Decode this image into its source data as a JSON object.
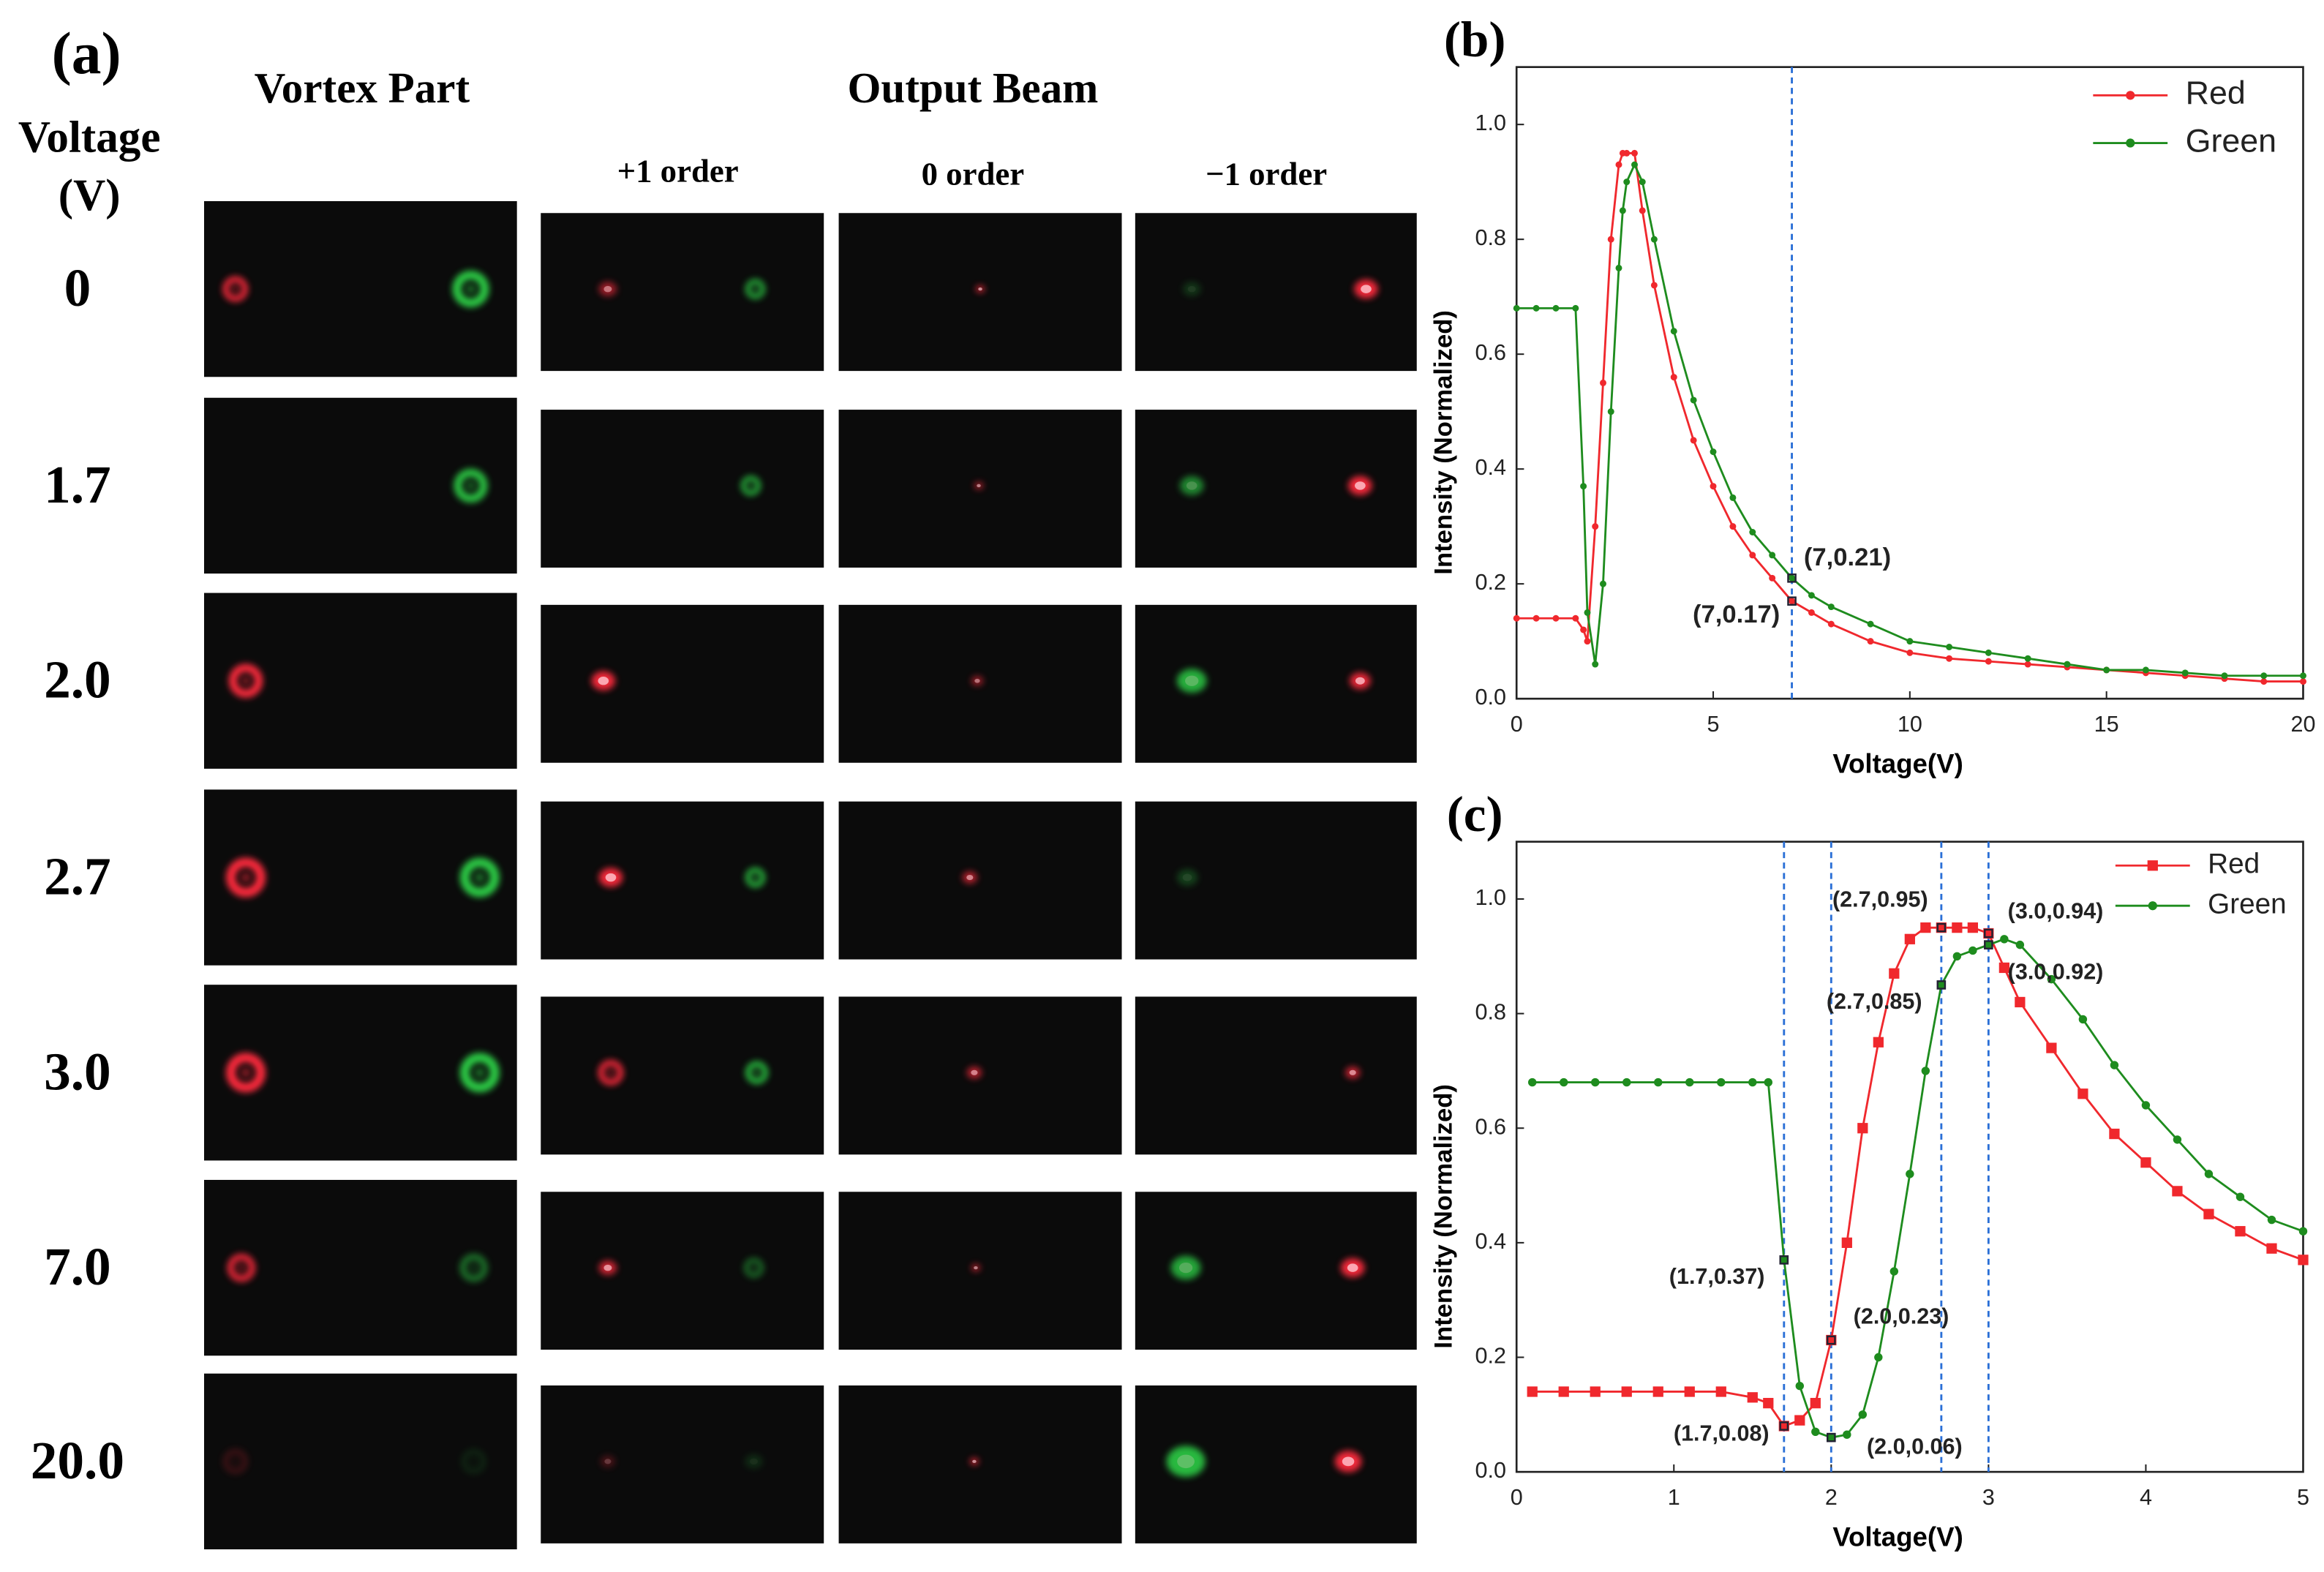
{
  "panel_a": {
    "label": "(a)",
    "row_header": [
      "Voltage",
      "(V)"
    ],
    "vortex_header": "Vortex Part",
    "output_header": "Output Beam",
    "orders": [
      "+1 order",
      "0 order",
      "−1 order"
    ],
    "voltages": [
      "0",
      "1.7",
      "2.0",
      "2.7",
      "3.0",
      "7.0",
      "20.0"
    ]
  },
  "chart_data": [
    {
      "type": "line",
      "label": "(b)",
      "x_label": "Voltage(V)",
      "y_label": "Intensity (Normalized)",
      "xlim": [
        0,
        20
      ],
      "ylim": [
        0,
        1.1
      ],
      "xticks": [
        0,
        5,
        10,
        15,
        20
      ],
      "yticks": [
        {
          "value": 0,
          "label": "0.0"
        },
        0.2,
        0.4,
        0.6,
        0.8,
        {
          "value": 1,
          "label": "1.0"
        }
      ],
      "legend": "upper right",
      "vlines": [
        7
      ],
      "x": [
        0,
        0.5,
        1,
        1.5,
        1.7,
        1.8,
        2.0,
        2.2,
        2.4,
        2.6,
        2.7,
        2.8,
        3.0,
        3.2,
        3.5,
        4,
        4.5,
        5,
        5.5,
        6,
        6.5,
        7,
        7.5,
        8,
        9,
        10,
        11,
        12,
        13,
        14,
        15,
        16,
        17,
        18,
        19,
        20
      ],
      "series": [
        {
          "name": "Red",
          "color": "#f0282d",
          "marker": "circle",
          "values": [
            0.14,
            0.14,
            0.14,
            0.14,
            0.12,
            0.1,
            0.3,
            0.55,
            0.8,
            0.93,
            0.95,
            0.95,
            0.95,
            0.85,
            0.72,
            0.56,
            0.45,
            0.37,
            0.3,
            0.25,
            0.21,
            0.17,
            0.15,
            0.13,
            0.1,
            0.08,
            0.07,
            0.065,
            0.06,
            0.055,
            0.05,
            0.045,
            0.04,
            0.035,
            0.03,
            0.03
          ]
        },
        {
          "name": "Green",
          "color": "#1e8c1e",
          "marker": "circle",
          "values": [
            0.68,
            0.68,
            0.68,
            0.68,
            0.37,
            0.15,
            0.06,
            0.2,
            0.5,
            0.75,
            0.85,
            0.9,
            0.93,
            0.9,
            0.8,
            0.64,
            0.52,
            0.43,
            0.35,
            0.29,
            0.25,
            0.21,
            0.18,
            0.16,
            0.13,
            0.1,
            0.09,
            0.08,
            0.07,
            0.06,
            0.05,
            0.05,
            0.045,
            0.04,
            0.04,
            0.04
          ]
        }
      ],
      "annotations": [
        {
          "label": "(7,0.21)",
          "x": 7,
          "y": 0.21
        },
        {
          "label": "(7,0.17)",
          "x": 7,
          "y": 0.17
        }
      ]
    },
    {
      "type": "line",
      "label": "(c)",
      "x_label": "Voltage(V)",
      "y_label": "Intensity (Normalized)",
      "xlim": [
        0,
        5
      ],
      "ylim": [
        0,
        1.1
      ],
      "xticks": [
        0,
        1,
        2,
        3,
        4,
        5
      ],
      "yticks": [
        {
          "value": 0,
          "label": "0.0"
        },
        0.2,
        0.4,
        0.6,
        0.8,
        {
          "value": 1,
          "label": "1.0"
        }
      ],
      "legend": "upper right",
      "vlines": [
        1.7,
        2.0,
        2.7,
        3.0
      ],
      "x": [
        0.1,
        0.3,
        0.5,
        0.7,
        0.9,
        1.1,
        1.3,
        1.5,
        1.6,
        1.7,
        1.8,
        1.9,
        2.0,
        2.1,
        2.2,
        2.3,
        2.4,
        2.5,
        2.6,
        2.7,
        2.8,
        2.9,
        3.0,
        3.1,
        3.2,
        3.4,
        3.6,
        3.8,
        4.0,
        4.2,
        4.4,
        4.6,
        4.8,
        5.0
      ],
      "series": [
        {
          "name": "Red",
          "color": "#f0282d",
          "marker": "square",
          "values": [
            0.14,
            0.14,
            0.14,
            0.14,
            0.14,
            0.14,
            0.14,
            0.13,
            0.12,
            0.08,
            0.09,
            0.12,
            0.23,
            0.4,
            0.6,
            0.75,
            0.87,
            0.93,
            0.95,
            0.95,
            0.95,
            0.95,
            0.94,
            0.88,
            0.82,
            0.74,
            0.66,
            0.59,
            0.54,
            0.49,
            0.45,
            0.42,
            0.39,
            0.37
          ]
        },
        {
          "name": "Green",
          "color": "#1e8c1e",
          "marker": "circle",
          "values": [
            0.68,
            0.68,
            0.68,
            0.68,
            0.68,
            0.68,
            0.68,
            0.68,
            0.68,
            0.37,
            0.15,
            0.07,
            0.06,
            0.065,
            0.1,
            0.2,
            0.35,
            0.52,
            0.7,
            0.85,
            0.9,
            0.91,
            0.92,
            0.93,
            0.92,
            0.86,
            0.79,
            0.71,
            0.64,
            0.58,
            0.52,
            0.48,
            0.44,
            0.42
          ]
        }
      ],
      "annotations": [
        {
          "label": "(2.7,0.95)",
          "x": 2.7,
          "y": 0.95
        },
        {
          "label": "(3.0,0.94)",
          "x": 3.0,
          "y": 0.94
        },
        {
          "label": "(3.0,0.92)",
          "x": 3.0,
          "y": 0.92
        },
        {
          "label": "(2.7,0.85)",
          "x": 2.7,
          "y": 0.85
        },
        {
          "label": "(1.7,0.37)",
          "x": 1.7,
          "y": 0.37
        },
        {
          "label": "(2.0,0.23)",
          "x": 2.0,
          "y": 0.23
        },
        {
          "label": "(1.7,0.08)",
          "x": 1.7,
          "y": 0.08
        },
        {
          "label": "(2.0,0.06)",
          "x": 2.0,
          "y": 0.06
        }
      ]
    }
  ]
}
